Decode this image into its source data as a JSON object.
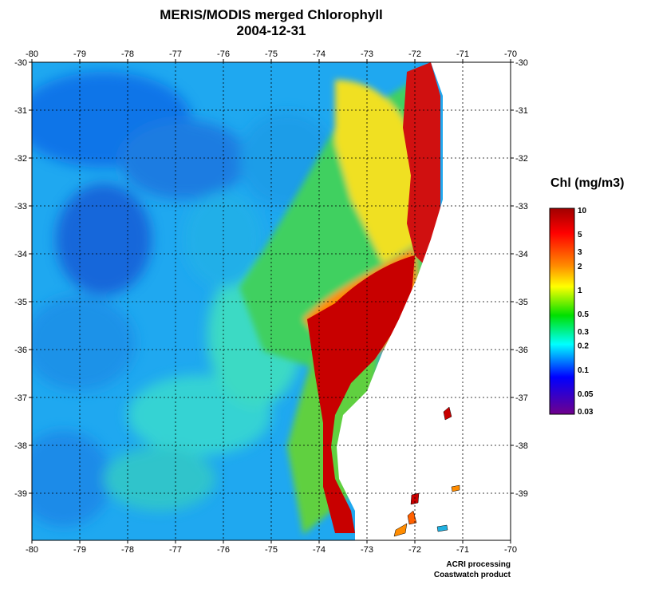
{
  "title": {
    "line1": "MERIS/MODIS merged Chlorophyll",
    "line2": "2004-12-31"
  },
  "map": {
    "lon_ticks": [
      "-80",
      "-79",
      "-78",
      "-77",
      "-76",
      "-75",
      "-74",
      "-73",
      "-72",
      "-71",
      "-70"
    ],
    "lat_ticks": [
      "-30",
      "-31",
      "-32",
      "-33",
      "-34",
      "-35",
      "-36",
      "-37",
      "-38",
      "-39"
    ],
    "land_color": "#ffffff",
    "grid": "dotted"
  },
  "legend": {
    "title": "Chl (mg/m3)",
    "labels": [
      "10",
      "5",
      "3",
      "2",
      "1",
      "0.5",
      "0.3",
      "0.2",
      "0.1",
      "0.05",
      "0.03"
    ],
    "colors": [
      "#a00000",
      "#ff0000",
      "#ff8c00",
      "#ffff00",
      "#00e000",
      "#00ffff",
      "#0000ff",
      "#70008c"
    ]
  },
  "credits": {
    "line1": "ACRI processing",
    "line2": "Coastwatch product"
  }
}
